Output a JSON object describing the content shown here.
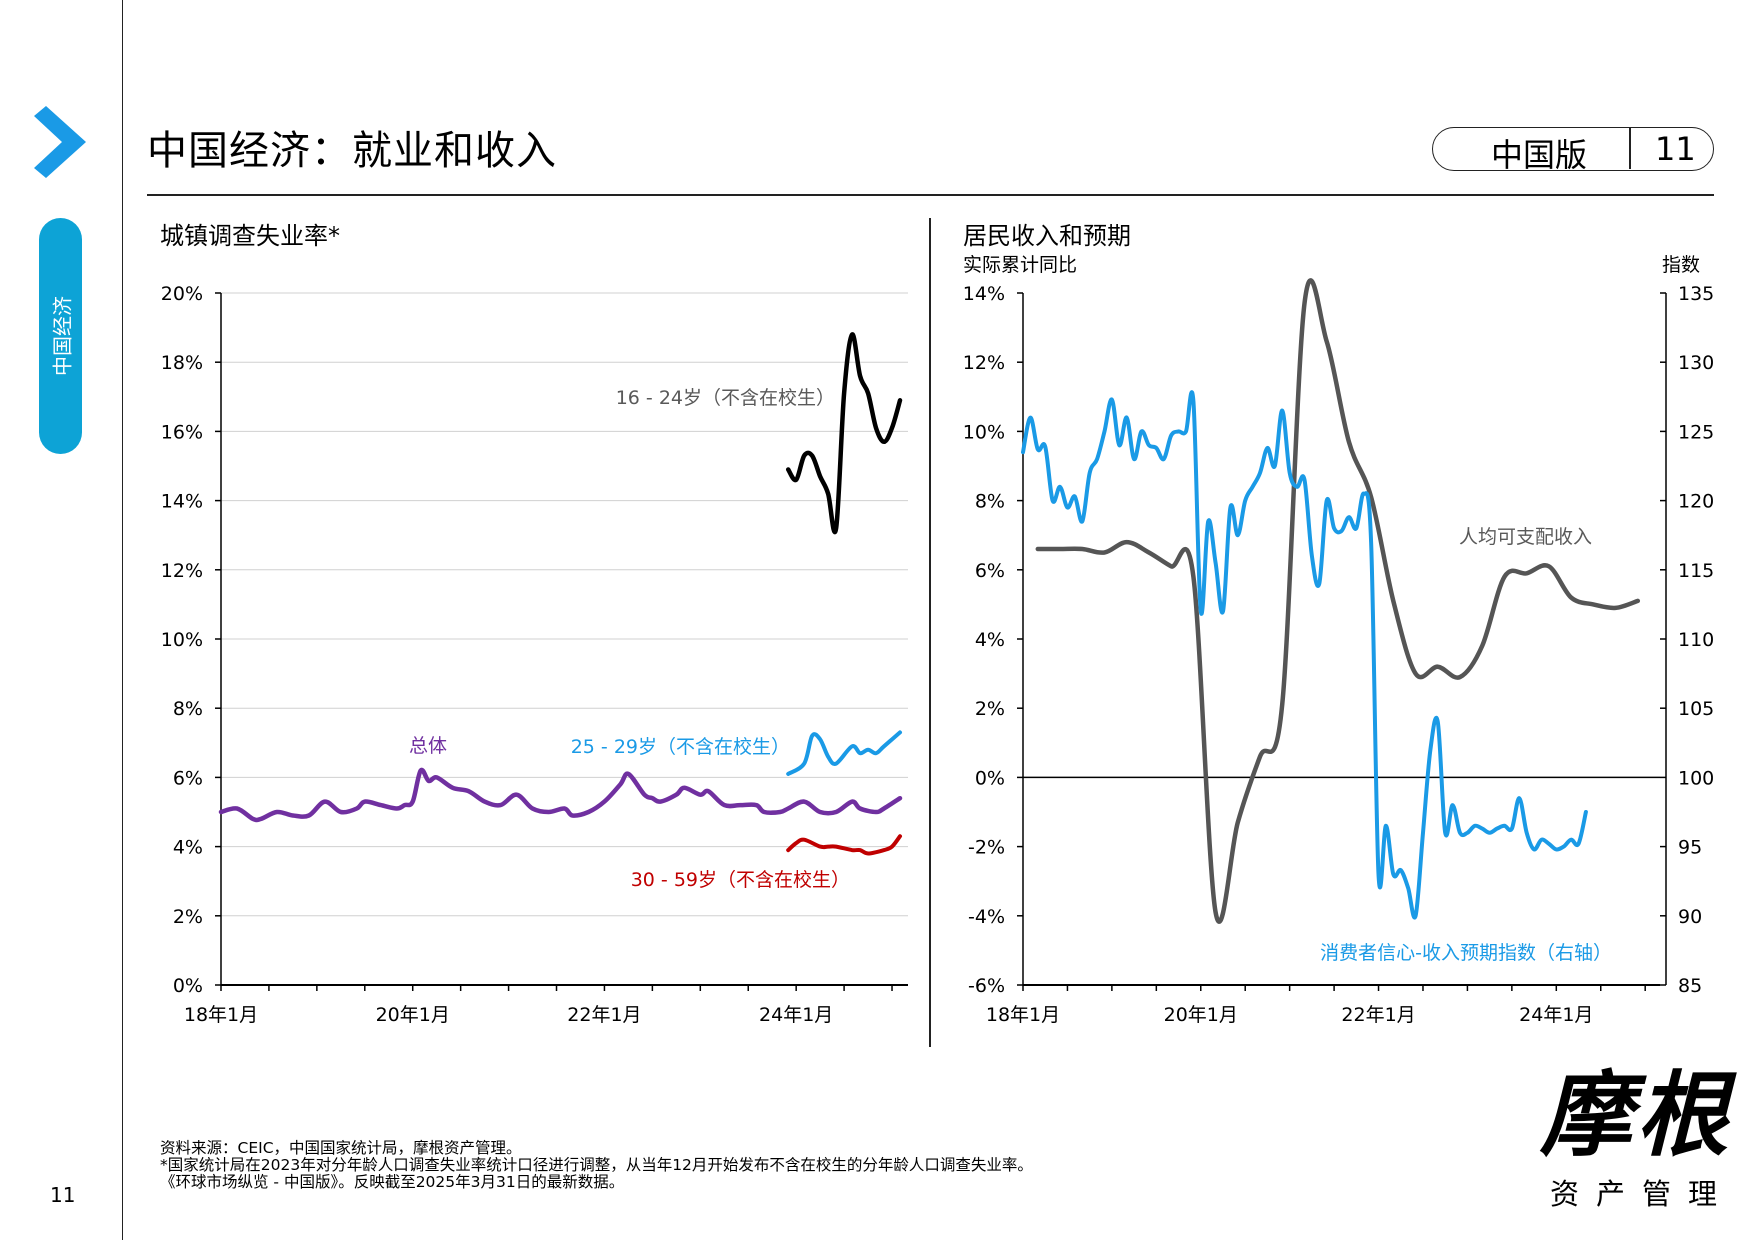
{
  "header": {
    "title": "中国经济：就业和收入",
    "edition": "中国版",
    "page": "11"
  },
  "sidebar": {
    "section": "中国经济",
    "page_number": "11"
  },
  "footer": {
    "line1": "资料来源：CEIC，中国国家统计局，摩根资产管理。",
    "line2": "*国家统计局在2023年对分年龄人口调查失业率统计口径进行调整，从当年12月开始发布不含在校生的分年龄人口调查失业率。",
    "line3": "《环球市场纵览 - 中国版》。反映截至2025年3月31日的最新数据。"
  },
  "logo": {
    "main": "摩根",
    "sub": "资产管理"
  },
  "colors": {
    "accent": "#0da3d6",
    "purple": "#7030a0",
    "blue": "#1a9ae6",
    "red": "#c00000",
    "black": "#000000",
    "gray": "#555555"
  },
  "chart_data": [
    {
      "type": "line",
      "title": "城镇调查失业率*",
      "ylim": [
        0,
        20
      ],
      "yticks": [
        "0%",
        "2%",
        "4%",
        "6%",
        "8%",
        "10%",
        "12%",
        "14%",
        "16%",
        "18%",
        "20%"
      ],
      "xticks": [
        "18年1月",
        "20年1月",
        "22年1月",
        "24年1月"
      ],
      "x_range": [
        "2018-01",
        "2025-03"
      ],
      "grid": true,
      "series": [
        {
          "name": "总体",
          "color": "#7030a0",
          "points": [
            [
              "2018-01",
              5.0
            ],
            [
              "2018-03",
              5.1
            ],
            [
              "2018-05",
              4.8
            ],
            [
              "2018-06",
              4.8
            ],
            [
              "2018-08",
              5.0
            ],
            [
              "2018-10",
              4.9
            ],
            [
              "2018-12",
              4.9
            ],
            [
              "2019-02",
              5.3
            ],
            [
              "2019-04",
              5.0
            ],
            [
              "2019-06",
              5.1
            ],
            [
              "2019-07",
              5.3
            ],
            [
              "2019-09",
              5.2
            ],
            [
              "2019-11",
              5.1
            ],
            [
              "2019-12",
              5.2
            ],
            [
              "2020-01",
              5.3
            ],
            [
              "2020-02",
              6.2
            ],
            [
              "2020-03",
              5.9
            ],
            [
              "2020-04",
              6.0
            ],
            [
              "2020-06",
              5.7
            ],
            [
              "2020-08",
              5.6
            ],
            [
              "2020-10",
              5.3
            ],
            [
              "2020-12",
              5.2
            ],
            [
              "2021-02",
              5.5
            ],
            [
              "2021-04",
              5.1
            ],
            [
              "2021-06",
              5.0
            ],
            [
              "2021-08",
              5.1
            ],
            [
              "2021-09",
              4.9
            ],
            [
              "2021-11",
              5.0
            ],
            [
              "2022-01",
              5.3
            ],
            [
              "2022-03",
              5.8
            ],
            [
              "2022-04",
              6.1
            ],
            [
              "2022-06",
              5.5
            ],
            [
              "2022-07",
              5.4
            ],
            [
              "2022-08",
              5.3
            ],
            [
              "2022-10",
              5.5
            ],
            [
              "2022-11",
              5.7
            ],
            [
              "2023-01",
              5.5
            ],
            [
              "2023-02",
              5.6
            ],
            [
              "2023-04",
              5.2
            ],
            [
              "2023-06",
              5.2
            ],
            [
              "2023-08",
              5.2
            ],
            [
              "2023-09",
              5.0
            ],
            [
              "2023-11",
              5.0
            ],
            [
              "2023-12",
              5.1
            ],
            [
              "2024-02",
              5.3
            ],
            [
              "2024-04",
              5.0
            ],
            [
              "2024-06",
              5.0
            ],
            [
              "2024-08",
              5.3
            ],
            [
              "2024-09",
              5.1
            ],
            [
              "2024-11",
              5.0
            ],
            [
              "2024-12",
              5.1
            ],
            [
              "2025-02",
              5.4
            ]
          ]
        },
        {
          "name": "16 - 24岁（不含在校生）",
          "color": "#000000",
          "points": [
            [
              "2023-12",
              14.9
            ],
            [
              "2024-01",
              14.6
            ],
            [
              "2024-02",
              15.3
            ],
            [
              "2024-03",
              15.3
            ],
            [
              "2024-04",
              14.7
            ],
            [
              "2024-05",
              14.2
            ],
            [
              "2024-06",
              13.2
            ],
            [
              "2024-07",
              17.1
            ],
            [
              "2024-08",
              18.8
            ],
            [
              "2024-09",
              17.6
            ],
            [
              "2024-10",
              17.1
            ],
            [
              "2024-11",
              16.1
            ],
            [
              "2024-12",
              15.7
            ],
            [
              "2025-01",
              16.1
            ],
            [
              "2025-02",
              16.9
            ]
          ]
        },
        {
          "name": "25 - 29岁（不含在校生）",
          "color": "#1a9ae6",
          "points": [
            [
              "2023-12",
              6.1
            ],
            [
              "2024-02",
              6.4
            ],
            [
              "2024-03",
              7.2
            ],
            [
              "2024-04",
              7.1
            ],
            [
              "2024-05",
              6.6
            ],
            [
              "2024-06",
              6.4
            ],
            [
              "2024-08",
              6.9
            ],
            [
              "2024-09",
              6.7
            ],
            [
              "2024-10",
              6.8
            ],
            [
              "2024-11",
              6.7
            ],
            [
              "2024-12",
              6.9
            ],
            [
              "2025-02",
              7.3
            ]
          ]
        },
        {
          "name": "30 - 59岁（不含在校生）",
          "color": "#c00000",
          "points": [
            [
              "2023-12",
              3.9
            ],
            [
              "2024-01",
              4.1
            ],
            [
              "2024-02",
              4.2
            ],
            [
              "2024-04",
              4.0
            ],
            [
              "2024-05",
              4.0
            ],
            [
              "2024-06",
              4.0
            ],
            [
              "2024-08",
              3.9
            ],
            [
              "2024-09",
              3.9
            ],
            [
              "2024-10",
              3.8
            ],
            [
              "2024-12",
              3.9
            ],
            [
              "2025-01",
              4.0
            ],
            [
              "2025-02",
              4.3
            ]
          ]
        }
      ]
    },
    {
      "type": "line",
      "title": "居民收入和预期",
      "ylabel_left": "实际累计同比",
      "ylabel_right": "指数",
      "ylim_left": [
        -6,
        14
      ],
      "ylim_right": [
        85,
        135
      ],
      "yticks_left": [
        "-6%",
        "-4%",
        "-2%",
        "0%",
        "2%",
        "4%",
        "6%",
        "8%",
        "10%",
        "12%",
        "14%"
      ],
      "yticks_right": [
        "85",
        "90",
        "95",
        "100",
        "105",
        "110",
        "115",
        "120",
        "125",
        "130",
        "135"
      ],
      "xticks": [
        "18年1月",
        "20年1月",
        "22年1月",
        "24年1月"
      ],
      "x_range": [
        "2018-01",
        "2025-03"
      ],
      "series": [
        {
          "name": "人均可支配收入",
          "axis": "left",
          "color": "#555555",
          "points": [
            [
              "2018-03",
              6.6
            ],
            [
              "2018-06",
              6.6
            ],
            [
              "2018-09",
              6.6
            ],
            [
              "2018-12",
              6.5
            ],
            [
              "2019-03",
              6.8
            ],
            [
              "2019-06",
              6.5
            ],
            [
              "2019-09",
              6.1
            ],
            [
              "2019-12",
              5.8
            ],
            [
              "2020-03",
              -3.9
            ],
            [
              "2020-06",
              -1.3
            ],
            [
              "2020-09",
              0.6
            ],
            [
              "2020-12",
              2.1
            ],
            [
              "2021-03",
              13.7
            ],
            [
              "2021-06",
              12.6
            ],
            [
              "2021-09",
              9.7
            ],
            [
              "2021-12",
              8.1
            ],
            [
              "2022-03",
              5.1
            ],
            [
              "2022-06",
              3.0
            ],
            [
              "2022-09",
              3.2
            ],
            [
              "2022-12",
              2.9
            ],
            [
              "2023-03",
              3.8
            ],
            [
              "2023-06",
              5.8
            ],
            [
              "2023-09",
              5.9
            ],
            [
              "2023-12",
              6.1
            ],
            [
              "2024-03",
              5.2
            ],
            [
              "2024-06",
              5.0
            ],
            [
              "2024-09",
              4.9
            ],
            [
              "2024-12",
              5.1
            ]
          ]
        },
        {
          "name": "消费者信心-收入预期指数（右轴）",
          "axis": "right",
          "color": "#1a9ae6",
          "points": [
            [
              "2018-01",
              123.5
            ],
            [
              "2018-02",
              126
            ],
            [
              "2018-03",
              123.7
            ],
            [
              "2018-04",
              123.9
            ],
            [
              "2018-05",
              120
            ],
            [
              "2018-06",
              121
            ],
            [
              "2018-07",
              119.5
            ],
            [
              "2018-08",
              120.3
            ],
            [
              "2018-09",
              118.5
            ],
            [
              "2018-10",
              122
            ],
            [
              "2018-11",
              123
            ],
            [
              "2018-12",
              125
            ],
            [
              "2019-01",
              127.3
            ],
            [
              "2019-02",
              124
            ],
            [
              "2019-03",
              126
            ],
            [
              "2019-04",
              123
            ],
            [
              "2019-05",
              125
            ],
            [
              "2019-06",
              124
            ],
            [
              "2019-07",
              123.8
            ],
            [
              "2019-08",
              123
            ],
            [
              "2019-09",
              124.7
            ],
            [
              "2019-10",
              125
            ],
            [
              "2019-11",
              125
            ],
            [
              "2019-12",
              127.2
            ],
            [
              "2020-01",
              112
            ],
            [
              "2020-02",
              118.5
            ],
            [
              "2020-03",
              115.5
            ],
            [
              "2020-04",
              112
            ],
            [
              "2020-05",
              119.5
            ],
            [
              "2020-06",
              117.5
            ],
            [
              "2020-07",
              120
            ],
            [
              "2020-08",
              121
            ],
            [
              "2020-09",
              122
            ],
            [
              "2020-10",
              123.8
            ],
            [
              "2020-11",
              122.5
            ],
            [
              "2020-12",
              126.5
            ],
            [
              "2021-01",
              122
            ],
            [
              "2021-02",
              121
            ],
            [
              "2021-03",
              121.5
            ],
            [
              "2021-04",
              116
            ],
            [
              "2021-05",
              114
            ],
            [
              "2021-06",
              120
            ],
            [
              "2021-07",
              118
            ],
            [
              "2021-08",
              117.8
            ],
            [
              "2021-09",
              118.8
            ],
            [
              "2021-10",
              118
            ],
            [
              "2021-11",
              120.5
            ],
            [
              "2021-12",
              117
            ],
            [
              "2022-01",
              93
            ],
            [
              "2022-02",
              96.5
            ],
            [
              "2022-03",
              93
            ],
            [
              "2022-04",
              93.3
            ],
            [
              "2022-05",
              92
            ],
            [
              "2022-06",
              90
            ],
            [
              "2022-07",
              96
            ],
            [
              "2022-08",
              102
            ],
            [
              "2022-09",
              104
            ],
            [
              "2022-10",
              96
            ],
            [
              "2022-11",
              98
            ],
            [
              "2022-12",
              96
            ],
            [
              "2023-01",
              96
            ],
            [
              "2023-02",
              96.5
            ],
            [
              "2023-03",
              96.3
            ],
            [
              "2023-04",
              96
            ],
            [
              "2023-05",
              96.3
            ],
            [
              "2023-06",
              96.5
            ],
            [
              "2023-07",
              96.3
            ],
            [
              "2023-08",
              98.5
            ],
            [
              "2023-09",
              96
            ],
            [
              "2023-10",
              94.8
            ],
            [
              "2023-11",
              95.5
            ],
            [
              "2023-12",
              95.2
            ],
            [
              "2024-01",
              94.8
            ],
            [
              "2024-02",
              95
            ],
            [
              "2024-03",
              95.5
            ],
            [
              "2024-04",
              95.2
            ],
            [
              "2024-05",
              97.5
            ]
          ]
        }
      ]
    }
  ]
}
